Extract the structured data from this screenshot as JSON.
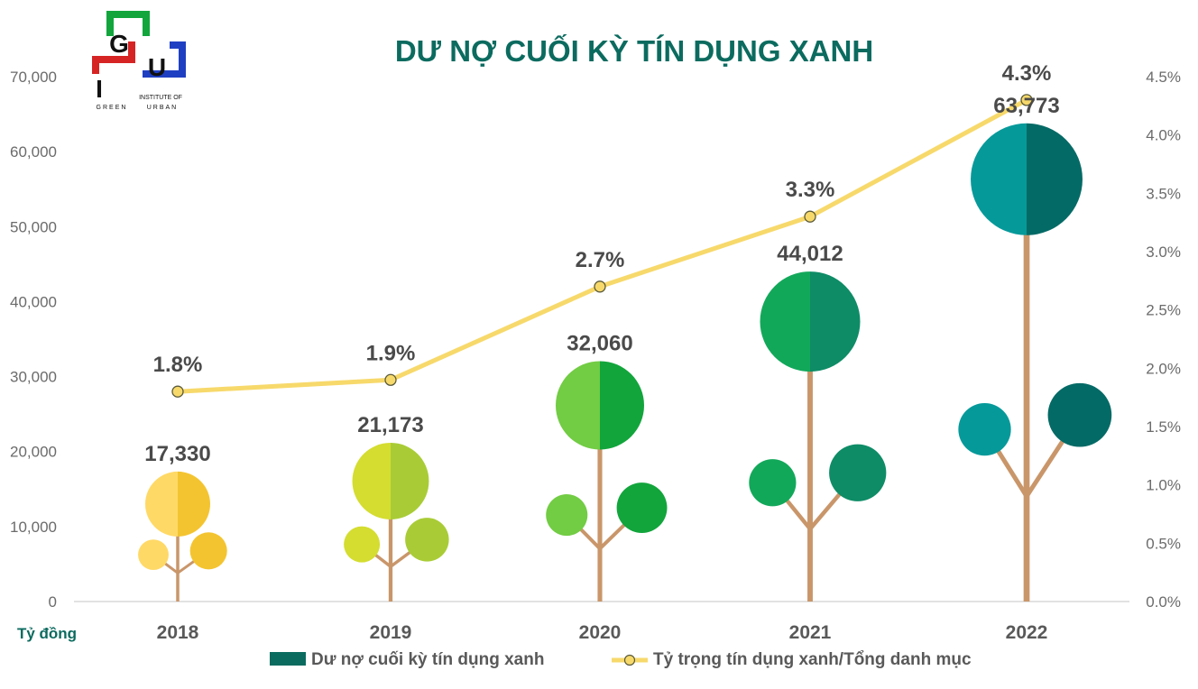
{
  "logo": {
    "letters": [
      "G",
      "U",
      "I"
    ],
    "tagline_top": "INSTITUTE OF",
    "word_left": "GREEN",
    "word_right": "URBAN"
  },
  "chart_data": {
    "type": "bar",
    "title": "DƯ NỢ CUỐI KỲ TÍN DỤNG XANH",
    "categories": [
      "2018",
      "2019",
      "2020",
      "2021",
      "2022"
    ],
    "unit_label": "Tỷ đồng",
    "series": [
      {
        "name": "Dư nợ cuối kỳ tín dụng xanh",
        "axis": "left",
        "values": [
          17330,
          21173,
          32060,
          44012,
          63773
        ],
        "value_labels": [
          "17,330",
          "21,173",
          "32,060",
          "44,012",
          "63,773"
        ],
        "color": "#0b6b5f"
      },
      {
        "name": "Tỷ trọng tín dụng xanh/Tổng danh mục",
        "axis": "right",
        "type": "line",
        "values": [
          1.8,
          1.9,
          2.7,
          3.3,
          4.3
        ],
        "value_labels": [
          "1.8%",
          "1.9%",
          "2.7%",
          "3.3%",
          "4.3%"
        ],
        "color": "#f7d96b"
      }
    ],
    "y_left": {
      "range": [
        0,
        70000
      ],
      "ticks": [
        "0",
        "10,000",
        "20,000",
        "30,000",
        "40,000",
        "50,000",
        "60,000",
        "70,000"
      ]
    },
    "y_right": {
      "range": [
        0,
        4.5
      ],
      "ticks": [
        "0.0%",
        "0.5%",
        "1.0%",
        "1.5%",
        "2.0%",
        "2.5%",
        "3.0%",
        "3.5%",
        "4.0%",
        "4.5%"
      ]
    },
    "grid": false,
    "legend_position": "bottom",
    "tree_colors": [
      {
        "light": "#ffd966",
        "dark": "#f4c430"
      },
      {
        "light": "#d4dd30",
        "dark": "#a9cc36"
      },
      {
        "light": "#72cc44",
        "dark": "#12a53c"
      },
      {
        "light": "#12a85a",
        "dark": "#0e8c66"
      },
      {
        "light": "#06999a",
        "dark": "#046a66"
      }
    ],
    "trunk_color": "#c9966a"
  }
}
